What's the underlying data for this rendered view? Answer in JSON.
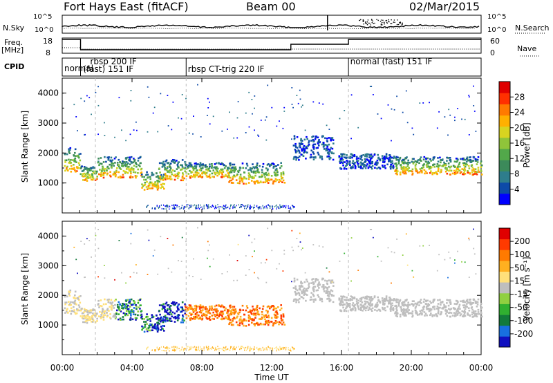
{
  "header": {
    "station": "Fort Hays East (fitACF)",
    "beam": "Beam 00",
    "date": "02/Mar/2015"
  },
  "top_panel": {
    "nsky_label": "N.Sky",
    "nsearch_label": "N.Search",
    "left_ticks": [
      "10^5",
      "10^0"
    ],
    "right_ticks": [
      "10^5",
      "10^0"
    ],
    "freq_label": "Freq.",
    "freq_unit": "[MHz]",
    "freq_ticks": [
      "18",
      "8"
    ],
    "nave_label": "Nave",
    "nave_ticks": [
      "60",
      "0"
    ],
    "cpid_label": "CPID",
    "cpid_segments": [
      {
        "text": "normal"
      },
      {
        "text": "rbsp 200 IF"
      },
      {
        "text": "(fast) 151 IF"
      },
      {
        "text": "rbsp CT-trig 220 IF"
      },
      {
        "text": "normal (fast) 151 IF"
      }
    ]
  },
  "chart_data": [
    {
      "type": "heatmap",
      "name": "power",
      "ylabel": "Slant Range [km]",
      "colorbar_label": "Power [dB]",
      "colorbar_ticks": [
        "28",
        "24",
        "20",
        "16",
        "12",
        "8",
        "4"
      ],
      "colorbar_colors": [
        "#0000ff",
        "#0d4aa8",
        "#2e7d8c",
        "#3c8a5a",
        "#52a84a",
        "#8fc43a",
        "#d8d420",
        "#ffb000",
        "#ff7a00",
        "#ff3000",
        "#e00000"
      ],
      "ylim": [
        0,
        4500
      ],
      "yticks": [
        "1000",
        "2000",
        "3000",
        "4000"
      ],
      "xlim": [
        0,
        24
      ]
    },
    {
      "type": "heatmap",
      "name": "velocity",
      "ylabel": "Slant Range [km]",
      "colorbar_label": "Velocity [m s⁻¹]",
      "colorbar_ticks": [
        "200",
        "100",
        "50",
        "15",
        "-15",
        "-50",
        "-100",
        "-200"
      ],
      "colorbar_colors": [
        "#1010c0",
        "#1870e0",
        "#127a3a",
        "#30b030",
        "#90d040",
        "#bebebe",
        "#ffe07a",
        "#ffb020",
        "#ff7a00",
        "#ff3a00",
        "#e00000"
      ],
      "ylim": [
        0,
        4500
      ],
      "yticks": [
        "1000",
        "2000",
        "3000",
        "4000"
      ],
      "xlim": [
        0,
        24
      ],
      "xticks": [
        "00:00",
        "04:00",
        "08:00",
        "12:00",
        "16:00",
        "20:00",
        "00:00"
      ],
      "xlabel": "Time UT"
    }
  ]
}
